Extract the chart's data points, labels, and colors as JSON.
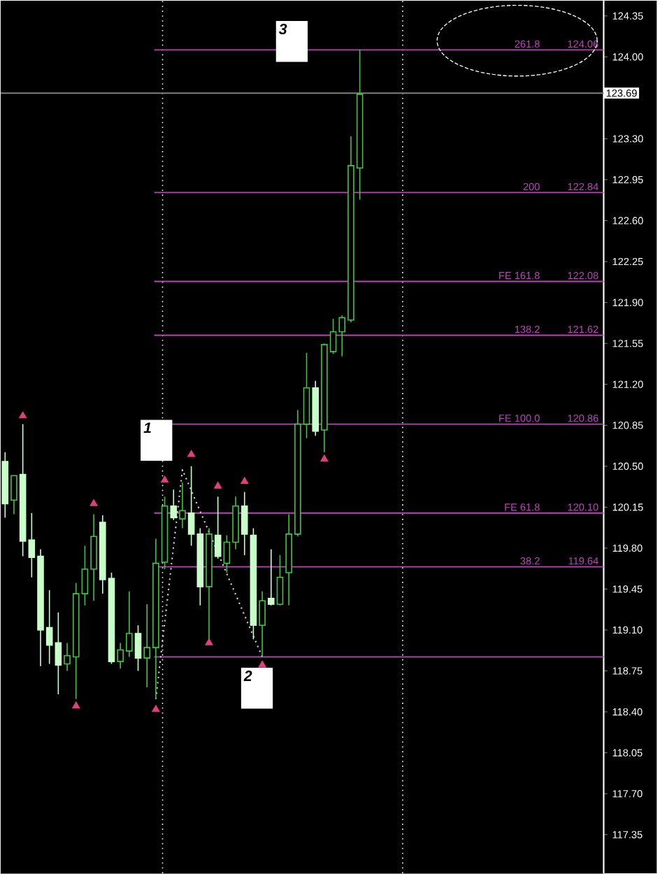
{
  "chart_data": {
    "type": "candlestick",
    "categories": [
      null,
      null,
      null,
      null,
      null,
      null,
      null,
      null,
      null,
      null,
      null,
      null,
      null,
      null,
      null,
      null,
      null,
      null,
      null,
      null,
      null,
      null,
      null,
      null,
      null,
      null,
      null,
      null,
      null,
      null,
      null,
      null,
      null,
      null,
      null,
      null,
      null,
      null,
      null,
      null,
      null,
      null,
      null,
      null,
      null,
      null,
      null,
      null,
      null,
      null,
      null,
      null,
      null,
      null,
      null,
      null,
      null,
      null,
      null,
      null,
      null,
      null,
      null,
      null,
      null,
      null,
      null,
      null
    ],
    "ohlc": [
      [
        120.54,
        120.62,
        120.06,
        120.18
      ],
      [
        120.21,
        120.42,
        120.09,
        120.42
      ],
      [
        120.43,
        120.86,
        119.73,
        119.86
      ],
      [
        119.87,
        120.1,
        119.55,
        119.72
      ],
      [
        119.73,
        119.79,
        118.79,
        119.1
      ],
      [
        119.12,
        119.44,
        118.81,
        118.97
      ],
      [
        118.99,
        119.25,
        118.55,
        118.8
      ],
      [
        118.81,
        118.99,
        118.75,
        118.88
      ],
      [
        118.87,
        119.5,
        118.51,
        119.41
      ],
      [
        119.41,
        119.82,
        119.31,
        119.62
      ],
      [
        119.62,
        120.09,
        119.35,
        119.9
      ],
      [
        120.02,
        120.08,
        119.41,
        119.53
      ],
      [
        119.54,
        119.59,
        118.81,
        118.83
      ],
      [
        118.83,
        118.99,
        118.77,
        118.93
      ],
      [
        118.92,
        119.43,
        118.87,
        119.07
      ],
      [
        119.07,
        119.14,
        118.75,
        118.86
      ],
      [
        118.86,
        119.32,
        118.61,
        118.95
      ],
      [
        118.95,
        119.88,
        118.51,
        119.67
      ],
      [
        119.68,
        120.24,
        119.62,
        120.16
      ],
      [
        120.16,
        120.3,
        120.04,
        120.06
      ],
      [
        120.05,
        120.36,
        119.97,
        120.12
      ],
      [
        120.1,
        120.5,
        119.82,
        119.92
      ],
      [
        119.92,
        119.97,
        119.31,
        119.47
      ],
      [
        119.47,
        119.97,
        119.02,
        119.92
      ],
      [
        119.91,
        120.24,
        119.71,
        119.73
      ],
      [
        119.67,
        119.91,
        119.59,
        119.85
      ],
      [
        119.85,
        120.24,
        119.79,
        120.16
      ],
      [
        120.16,
        120.28,
        119.74,
        119.92
      ],
      [
        119.91,
        119.97,
        119.02,
        119.14
      ],
      [
        119.14,
        119.43,
        118.87,
        119.35
      ],
      [
        119.37,
        119.79,
        119.31,
        119.32
      ],
      [
        119.32,
        119.74,
        119.31,
        119.55
      ],
      [
        119.59,
        120.09,
        119.31,
        119.92
      ],
      [
        119.92,
        120.98,
        119.9,
        120.86
      ],
      [
        120.86,
        121.47,
        120.74,
        121.17
      ],
      [
        121.17,
        121.23,
        120.76,
        120.8
      ],
      [
        120.81,
        121.55,
        120.62,
        121.54
      ],
      [
        121.48,
        121.76,
        121.46,
        121.65
      ],
      [
        121.65,
        121.79,
        121.44,
        121.77
      ],
      [
        121.75,
        123.32,
        121.73,
        123.07
      ],
      [
        123.05,
        124.06,
        122.78,
        123.68
      ],
      null,
      null,
      null,
      null,
      null,
      null,
      null,
      null,
      null,
      null,
      null,
      null,
      null,
      null,
      null,
      null,
      null,
      null,
      null,
      null,
      null,
      null,
      null,
      null,
      null,
      null,
      null
    ],
    "colors": [
      "#c8ffc8",
      "#3cc83c",
      "#c8ffc8",
      "#c8ffc8",
      "#c8ffc8",
      "#c8ffc8",
      "#c8ffc8",
      "#3cc83c",
      "#3cc83c",
      "#3cc83c",
      "#3cc83c",
      "#c8ffc8",
      "#c8ffc8",
      "#3cc83c",
      "#3cc83c",
      "#c8ffc8",
      "#3cc83c",
      "#3cc83c",
      "#3cc83c",
      "#c8ffc8",
      "#3cc83c",
      "#c8ffc8",
      "#c8ffc8",
      "#3cc83c",
      "#c8ffc8",
      "#3cc83c",
      "#3cc83c",
      "#c8ffc8",
      "#c8ffc8",
      "#3cc83c",
      "#c8ffc8",
      "#3cc83c",
      "#3cc83c",
      "#3cc83c",
      "#3cc83c",
      "#c8ffc8",
      "#3cc83c",
      "#3cc83c",
      "#3cc83c",
      "#3cc83c",
      "#3cc83c",
      null,
      null,
      null,
      null,
      null,
      null,
      null,
      null,
      null,
      null,
      null,
      null,
      null,
      null,
      null,
      null,
      null,
      null,
      null,
      null,
      null,
      null,
      null,
      null,
      null,
      null,
      null
    ],
    "series": [
      {
        "type": "scatter",
        "color": "#e0407f",
        "marker": "triangle",
        "values": [
          null,
          null,
          120.93,
          null,
          null,
          null,
          null,
          null,
          null,
          null,
          120.18,
          null,
          null,
          null,
          null,
          null,
          null,
          null,
          120.38,
          null,
          null,
          120.6,
          null,
          null,
          120.33,
          null,
          null,
          120.37,
          null,
          null,
          null,
          null,
          null,
          null,
          null,
          null,
          null,
          null,
          null,
          null,
          null,
          null,
          null,
          null,
          null,
          null,
          null,
          null,
          null,
          null,
          null,
          null,
          null,
          null,
          null,
          null,
          null,
          null,
          null,
          null,
          null,
          null,
          null,
          null,
          null,
          null,
          null,
          null
        ]
      },
      {
        "type": "scatter",
        "color": "#e0407f",
        "marker": "triangle",
        "values": [
          null,
          null,
          null,
          null,
          null,
          null,
          null,
          null,
          118.45,
          null,
          null,
          null,
          null,
          null,
          null,
          null,
          null,
          118.42,
          null,
          null,
          null,
          null,
          null,
          118.99,
          null,
          null,
          null,
          null,
          null,
          118.8,
          null,
          null,
          null,
          null,
          null,
          null,
          120.56,
          null,
          null,
          null,
          null,
          null,
          null,
          null,
          null,
          null,
          null,
          null,
          null,
          null,
          null,
          null,
          null,
          null,
          null,
          null,
          null,
          null,
          null,
          null,
          null,
          null,
          null,
          null,
          null,
          null,
          null,
          null
        ]
      },
      {
        "type": "line",
        "color": "#d0d0d0",
        "line_style": "dotted",
        "values": [
          null,
          null,
          null,
          null,
          null,
          null,
          null,
          null,
          null,
          null,
          null,
          null,
          null,
          null,
          null,
          null,
          null,
          118.51,
          null,
          null,
          120.47,
          null,
          null,
          null,
          null,
          null,
          null,
          null,
          null,
          118.87,
          null,
          null,
          null,
          null,
          null,
          null,
          null,
          null,
          null,
          null,
          null,
          null,
          null,
          null,
          null,
          null,
          null,
          null,
          null,
          null,
          null,
          null,
          null,
          null,
          null,
          null,
          null,
          null,
          null,
          null,
          null,
          null,
          null,
          null,
          null,
          null,
          null,
          null
        ]
      }
    ],
    "ylim": [
      117.02,
      124.48
    ],
    "yticks": [
      {
        "value": 117.35,
        "label": "117.35"
      },
      {
        "value": 117.7,
        "label": "117.70"
      },
      {
        "value": 118.05,
        "label": "118.05"
      },
      {
        "value": 118.4,
        "label": "118.40"
      },
      {
        "value": 118.75,
        "label": "118.75"
      },
      {
        "value": 119.1,
        "label": "119.10"
      },
      {
        "value": 119.45,
        "label": "119.45"
      },
      {
        "value": 119.8,
        "label": "119.80"
      },
      {
        "value": 120.15,
        "label": "120.15"
      },
      {
        "value": 120.5,
        "label": "120.50"
      },
      {
        "value": 120.85,
        "label": "120.85"
      },
      {
        "value": 121.2,
        "label": "121.20"
      },
      {
        "value": 121.55,
        "label": "121.55"
      },
      {
        "value": 121.9,
        "label": "121.90"
      },
      {
        "value": 122.25,
        "label": "122.25"
      },
      {
        "value": 122.6,
        "label": "122.60"
      },
      {
        "value": 122.95,
        "label": "122.95"
      },
      {
        "value": 123.3,
        "label": "123.30"
      },
      {
        "value": 123.65,
        "label": null
      },
      {
        "value": 124.0,
        "label": "124.00"
      },
      {
        "value": 124.35,
        "label": "124.35"
      }
    ],
    "tick_labels": "y",
    "ref_lines": [
      {
        "axis": "y",
        "value": 124.06,
        "label": "124.06",
        "color": "#c040c0"
      },
      {
        "axis": "y",
        "value": 122.84,
        "label": "122.84",
        "color": "#c040c0"
      },
      {
        "axis": "y",
        "value": 122.08,
        "label": "122.08",
        "color": "#c040c0"
      },
      {
        "axis": "y",
        "value": 121.62,
        "label": "121.62",
        "color": "#c040c0"
      },
      {
        "axis": "y",
        "value": 120.86,
        "label": "120.86",
        "color": "#c040c0"
      },
      {
        "axis": "y",
        "value": 120.1,
        "label": "120.10",
        "color": "#c040c0"
      },
      {
        "axis": "y",
        "value": 119.64,
        "label": "119.64",
        "color": "#c040c0"
      },
      {
        "axis": "y",
        "value": 118.87,
        "color": "#a04aa0"
      },
      {
        "axis": "y",
        "value": 123.69,
        "label": "123.69",
        "color": "#808080"
      }
    ],
    "annotations": [
      "1",
      "2",
      "3",
      {
        "text": "261.8",
        "y": 124.06
      },
      {
        "text": "200",
        "y": 122.84
      },
      {
        "text": "FE 161.8",
        "y": 122.08
      },
      {
        "text": "138.2",
        "y": 121.62
      },
      {
        "text": "FE 100.0",
        "y": 120.86
      },
      {
        "text": "FE 61.8",
        "y": 120.1
      },
      {
        "text": "38.2",
        "y": 119.64
      }
    ]
  }
}
